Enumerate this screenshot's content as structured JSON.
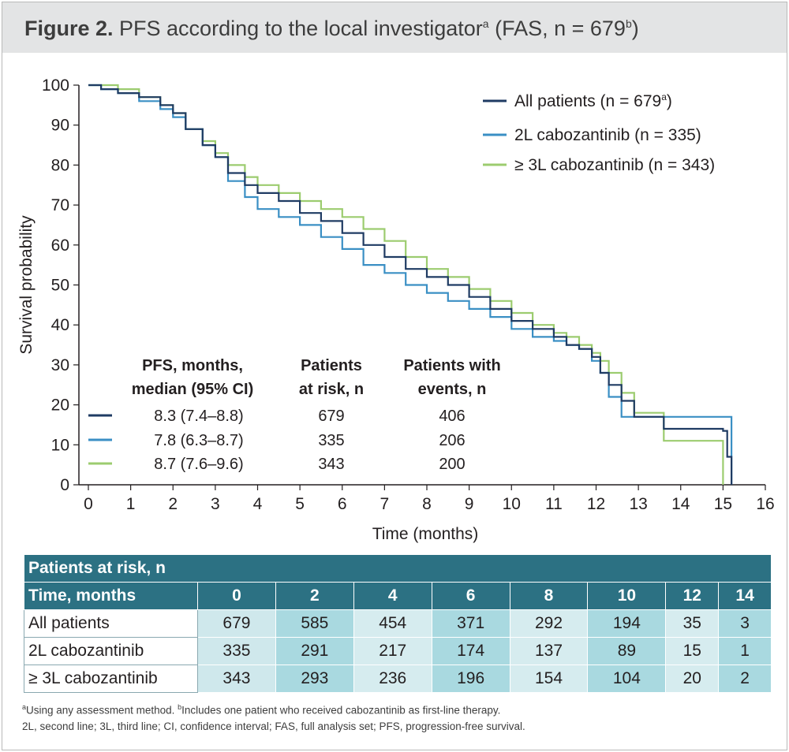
{
  "title": {
    "bold": "Figure 2.",
    "text": " PFS according to the local investigator",
    "sup_a": "a",
    "text2": " (FAS, n = 679",
    "sup_b": "b",
    "text3": ")"
  },
  "chart_data": {
    "type": "line",
    "step": true,
    "xlabel": "Time (months)",
    "ylabel": "Survival probability",
    "xlim": [
      0,
      16
    ],
    "ylim": [
      0,
      100
    ],
    "xticks": [
      0,
      1,
      2,
      3,
      4,
      5,
      6,
      7,
      8,
      9,
      10,
      11,
      12,
      13,
      14,
      15,
      16
    ],
    "yticks": [
      0,
      10,
      20,
      30,
      40,
      50,
      60,
      70,
      80,
      90,
      100
    ],
    "grid": false,
    "legend_position": "top-right",
    "series": [
      {
        "name": "All patients (n = 679",
        "name_sup": "a",
        "name_end": ")",
        "color": "#1f3b63",
        "x": [
          0,
          0.3,
          0.7,
          1.2,
          1.7,
          2.0,
          2.3,
          2.7,
          3.0,
          3.3,
          3.7,
          4.0,
          4.5,
          5.0,
          5.5,
          6.0,
          6.5,
          7.0,
          7.5,
          8.0,
          8.5,
          9.0,
          9.5,
          10.0,
          10.5,
          11.0,
          11.3,
          11.6,
          11.9,
          12.1,
          12.3,
          12.6,
          12.9,
          13.6,
          14.0,
          14.5,
          15.0,
          15.1,
          15.2
        ],
        "y": [
          100,
          99,
          98,
          97,
          95,
          93,
          89,
          85,
          82,
          78,
          75,
          73,
          71,
          68,
          66,
          63,
          60,
          57,
          54,
          52,
          50,
          47,
          44,
          41,
          39,
          37,
          35,
          34,
          32,
          28,
          25,
          21,
          17,
          14,
          14,
          14,
          13.5,
          7,
          0
        ]
      },
      {
        "name": "2L cabozantinib (n = 335)",
        "color": "#3a8fc4",
        "x": [
          0,
          0.3,
          0.7,
          1.2,
          1.7,
          2.0,
          2.3,
          2.7,
          3.0,
          3.3,
          3.7,
          4.0,
          4.5,
          5.0,
          5.5,
          6.0,
          6.5,
          7.0,
          7.5,
          8.0,
          8.5,
          9.0,
          9.5,
          10.0,
          10.5,
          11.0,
          11.3,
          11.6,
          11.9,
          12.1,
          12.3,
          12.6,
          12.9,
          13.5,
          14.0,
          14.5,
          15.0,
          15.2
        ],
        "y": [
          100,
          99,
          98,
          96,
          94,
          92,
          89,
          85,
          82,
          76,
          72,
          69,
          67,
          65,
          62,
          59,
          55,
          53,
          50,
          48,
          46,
          44,
          42,
          39,
          37,
          36,
          35,
          34,
          31,
          28,
          22,
          17,
          17,
          17,
          17,
          17,
          17,
          0
        ]
      },
      {
        "name": "≥ 3L cabozantinib (n = 343)",
        "color": "#9ccc6f",
        "x": [
          0,
          0.3,
          0.7,
          1.2,
          1.7,
          2.0,
          2.3,
          2.7,
          3.0,
          3.3,
          3.7,
          4.0,
          4.5,
          5.0,
          5.5,
          6.0,
          6.5,
          7.0,
          7.5,
          8.0,
          8.5,
          9.0,
          9.5,
          10.0,
          10.5,
          11.0,
          11.3,
          11.6,
          11.9,
          12.1,
          12.3,
          12.6,
          12.9,
          13.6,
          14.0,
          14.5,
          14.9,
          15.0
        ],
        "y": [
          100,
          100,
          99,
          97,
          95,
          93,
          89,
          86,
          83,
          80,
          77,
          75,
          73,
          71,
          69,
          67,
          64,
          61,
          57,
          54,
          52,
          49,
          46,
          43,
          40,
          38,
          37,
          35,
          33,
          31,
          28,
          23,
          18,
          11,
          11,
          11,
          11,
          0
        ]
      }
    ],
    "stats_table": {
      "headers": [
        [
          "PFS, months,",
          "median (95% CI)"
        ],
        [
          "Patients",
          "at risk, n"
        ],
        [
          "Patients with",
          "events, n"
        ]
      ],
      "rows": [
        {
          "color": "#1f3b63",
          "median": "8.3 (7.4–8.8)",
          "at_risk": "679",
          "events": "406"
        },
        {
          "color": "#3a8fc4",
          "median": "7.8 (6.3–8.7)",
          "at_risk": "335",
          "events": "206"
        },
        {
          "color": "#9ccc6f",
          "median": "8.7 (7.6–9.6)",
          "at_risk": "343",
          "events": "200"
        }
      ]
    }
  },
  "risk_table": {
    "title": "Patients at risk, n",
    "time_label": "Time, months",
    "times": [
      "0",
      "2",
      "4",
      "6",
      "8",
      "10",
      "12",
      "14"
    ],
    "rows": [
      {
        "label": "All patients",
        "values": [
          "679",
          "585",
          "454",
          "371",
          "292",
          "194",
          "35",
          "3"
        ]
      },
      {
        "label": "2L cabozantinib",
        "values": [
          "335",
          "291",
          "217",
          "174",
          "137",
          "89",
          "15",
          "1"
        ]
      },
      {
        "label": "≥ 3L cabozantinib",
        "values": [
          "343",
          "293",
          "236",
          "196",
          "154",
          "104",
          "20",
          "2"
        ]
      }
    ]
  },
  "footnotes": {
    "line1_sup_a": "a",
    "line1_a": "Using any assessment method. ",
    "line1_sup_b": "b",
    "line1_b": "Includes one patient who received cabozantinib as first-line therapy.",
    "line2": "2L, second line; 3L, third line; CI, confidence interval; FAS, full analysis set; PFS, progression-free survival."
  }
}
